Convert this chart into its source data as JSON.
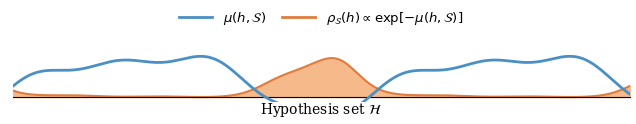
{
  "blue_color": "#4a90c4",
  "orange_color": "#e07c3e",
  "orange_fill_color": "#f5b98a",
  "background_color": "#ffffff",
  "xlabel": "Hypothesis set $\\mathcal{H}$",
  "legend_blue": "$\\mu(h, \\mathcal{S})$",
  "legend_orange": "$\\rho_{\\mathcal{S}}(h) \\propto \\exp[-\\mu(h, \\mathcal{S})]$",
  "xlim": [
    0,
    10
  ],
  "ylim": [
    -0.15,
    2.0
  ],
  "figsize": [
    6.36,
    1.24
  ],
  "dpi": 100
}
